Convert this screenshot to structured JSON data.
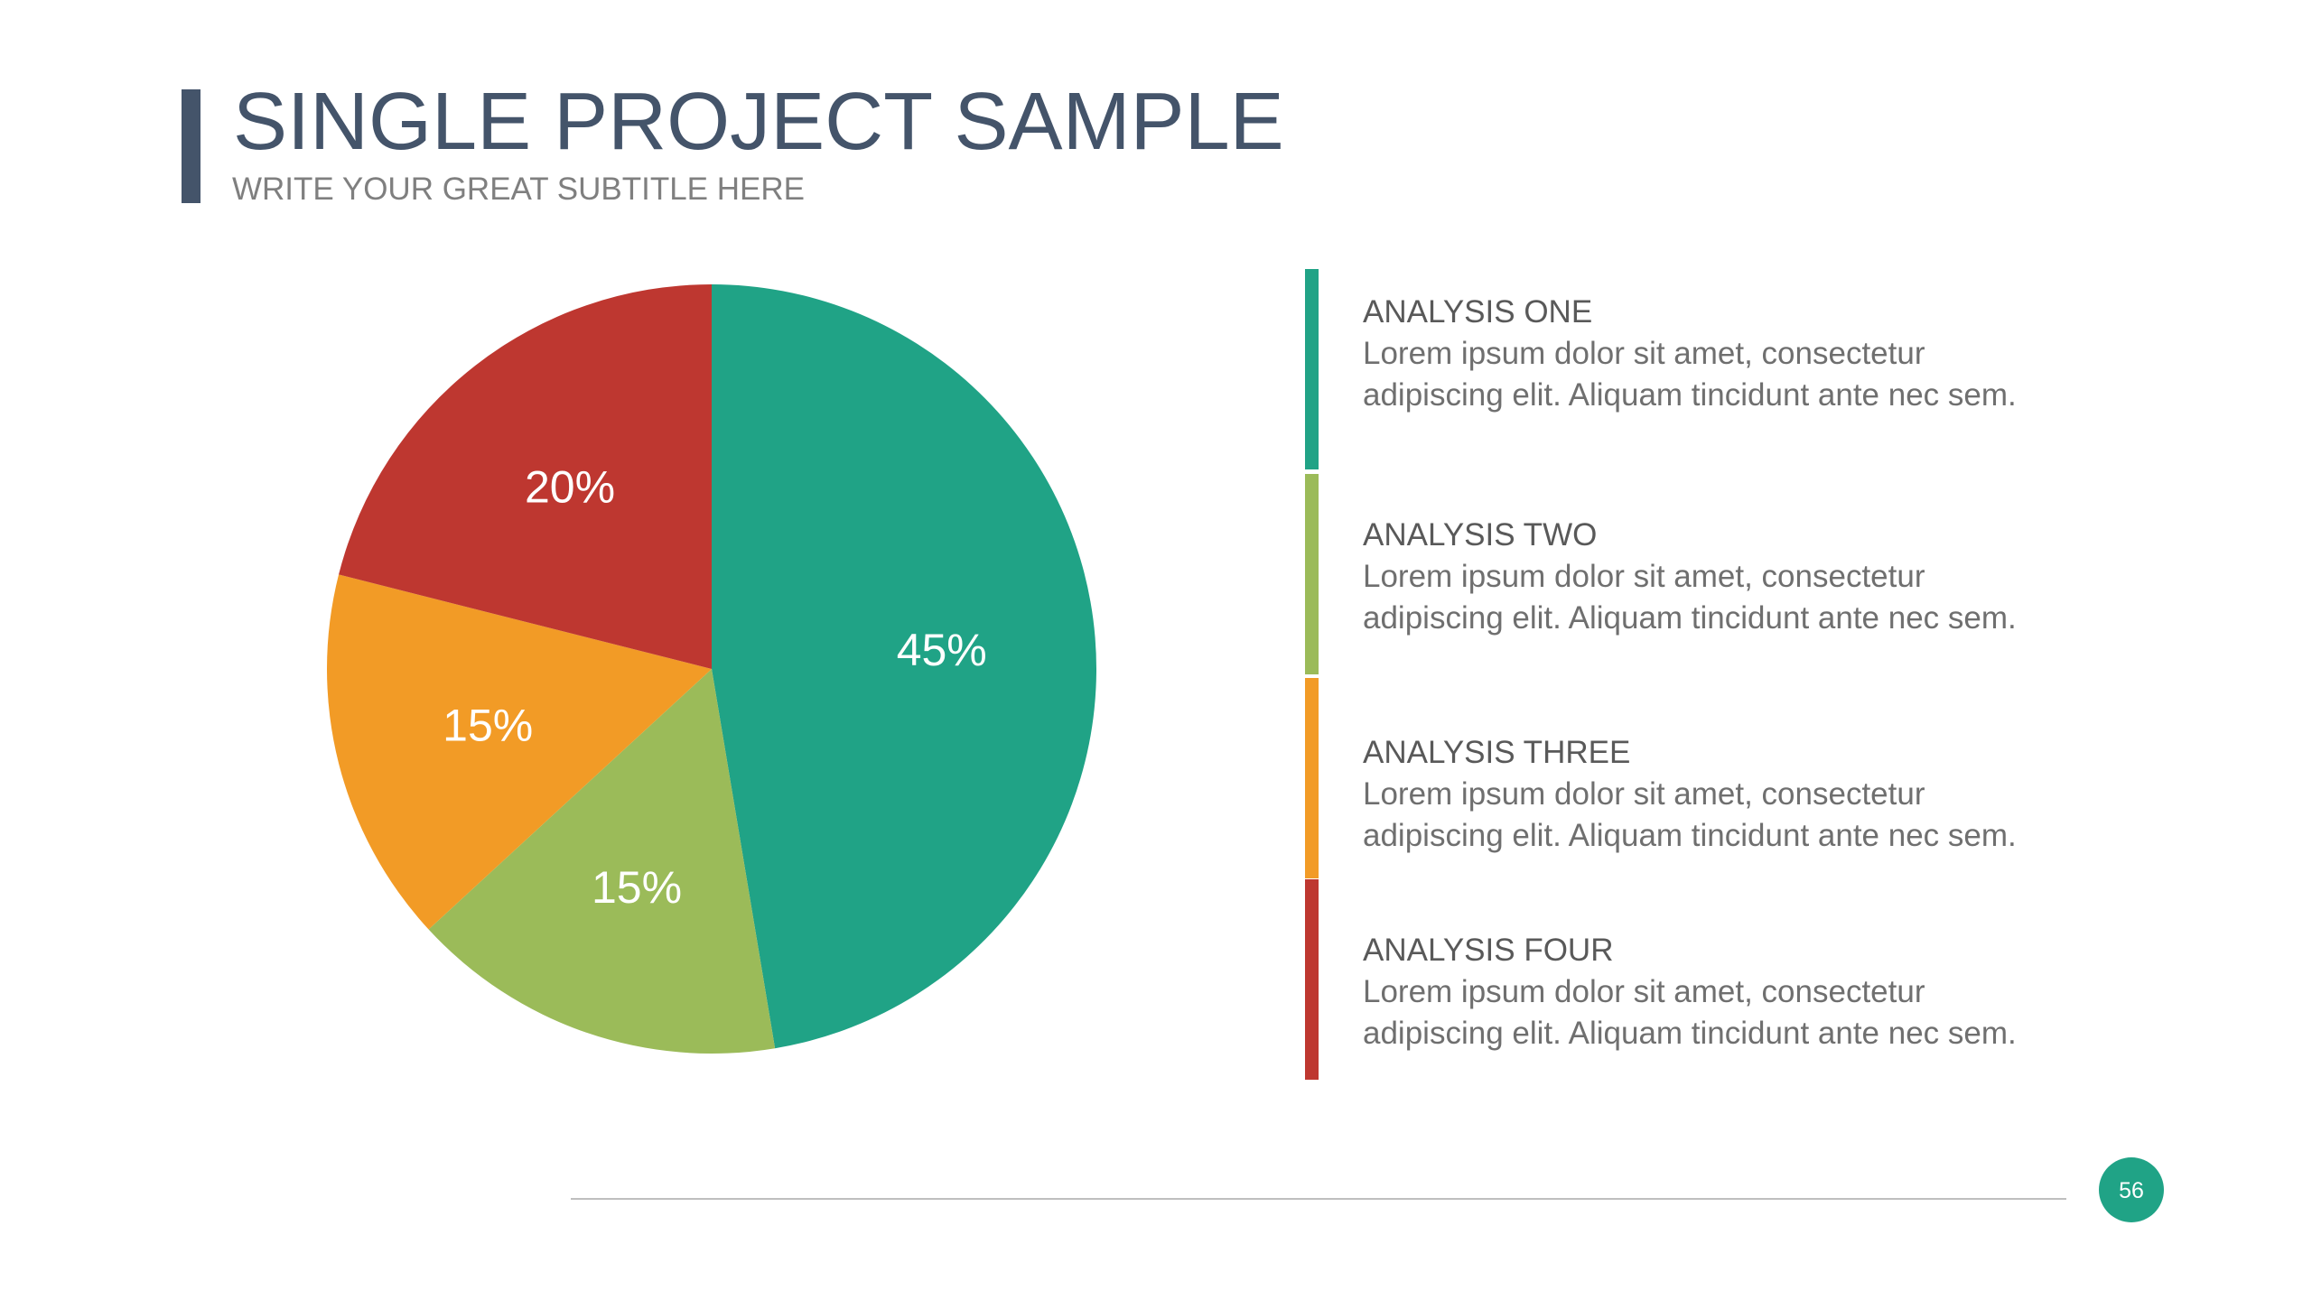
{
  "chart_data": {
    "type": "pie",
    "title": "SINGLE PROJECT SAMPLE",
    "subtitle": "WRITE YOUR GREAT SUBTITLE HERE",
    "categories": [
      "ANALYSIS ONE",
      "ANALYSIS TWO",
      "ANALYSIS THREE",
      "ANALYSIS FOUR"
    ],
    "values": [
      45,
      15,
      15,
      20
    ],
    "value_labels": [
      "45%",
      "15%",
      "15%",
      "20%"
    ],
    "colors": [
      "#20a386",
      "#9bbb59",
      "#f29b26",
      "#be3730"
    ],
    "descriptions": [
      "Lorem ipsum dolor sit amet, consectetur adipiscing elit. Aliquam tincidunt ante nec sem.",
      "Lorem ipsum dolor sit amet, consectetur adipiscing elit. Aliquam tincidunt ante nec sem.",
      "Lorem ipsum dolor sit amet, consectetur adipiscing elit. Aliquam tincidunt ante nec sem.",
      "Lorem ipsum dolor sit amet, consectetur adipiscing elit. Aliquam tincidunt ante nec sem."
    ]
  },
  "page_number": "56"
}
